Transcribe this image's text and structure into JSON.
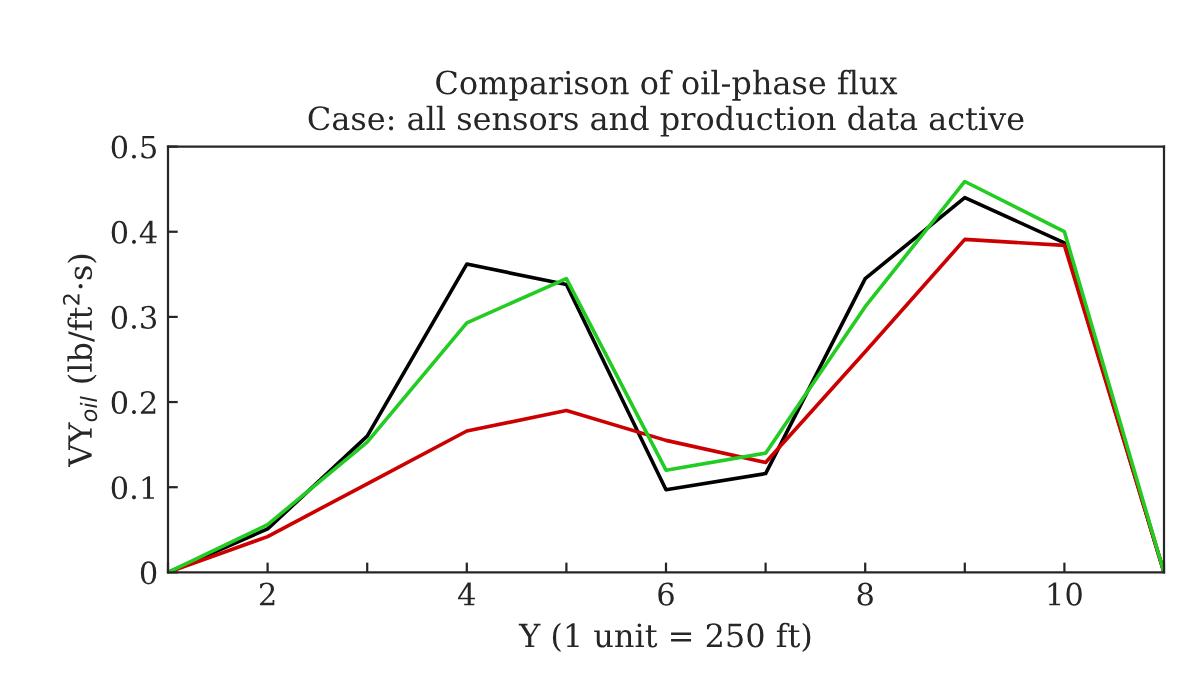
{
  "chart_data": {
    "type": "line",
    "title": "Comparison of oil-phase flux\nCase: all sensors and production data active",
    "xlabel": "Y (1 unit = 250 ft)",
    "ylabel": "VY$_{oil}$ (lb/ft$^{2}$·s)",
    "x": [
      1,
      2,
      3,
      4,
      5,
      6,
      7,
      8,
      9,
      10,
      11
    ],
    "series": [
      {
        "color": "#000000",
        "values": [
          0,
          0.051,
          0.16,
          0.362,
          0.338,
          0.097,
          0.116,
          0.345,
          0.44,
          0.387,
          0
        ]
      },
      {
        "color": "#cc0000",
        "values": [
          0,
          0.042,
          0.104,
          0.166,
          0.19,
          0.155,
          0.129,
          0.259,
          0.391,
          0.384,
          0
        ]
      },
      {
        "color": "#22cc22",
        "values": [
          0,
          0.056,
          0.153,
          0.293,
          0.345,
          0.12,
          0.14,
          0.312,
          0.459,
          0.4,
          0
        ]
      }
    ],
    "xlim": [
      1,
      11
    ],
    "ylim": [
      0,
      0.5
    ],
    "xticks": [
      {
        "value": 1,
        "label": null
      },
      2,
      {
        "value": 3,
        "label": null
      },
      4,
      {
        "value": 5,
        "label": null
      },
      6,
      {
        "value": 7,
        "label": null
      },
      8,
      {
        "value": 9,
        "label": null
      },
      10,
      {
        "value": 11,
        "label": null
      }
    ],
    "yticks": [
      0,
      0.1,
      0.2,
      0.3,
      0.4,
      0.5
    ],
    "grid": false,
    "legend": false,
    "marker": "none",
    "line_style": "solid"
  }
}
